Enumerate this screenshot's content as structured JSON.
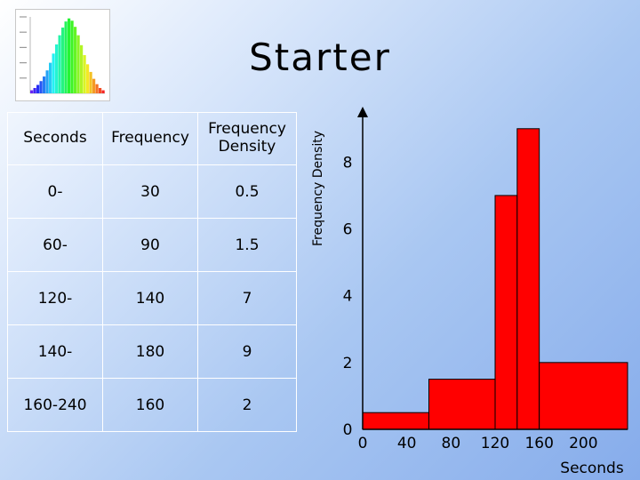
{
  "title": "Starter",
  "table": {
    "headers": [
      "Seconds",
      "Frequency",
      "Frequency Density"
    ],
    "rows": [
      [
        "0-",
        "30",
        "0.5"
      ],
      [
        "60-",
        "90",
        "1.5"
      ],
      [
        "120-",
        "140",
        "7"
      ],
      [
        "140-",
        "180",
        "9"
      ],
      [
        "160-240",
        "160",
        "2"
      ]
    ]
  },
  "chart_data": {
    "type": "bar",
    "subtype": "histogram",
    "xlabel": "Seconds",
    "ylabel": "Frequency Density",
    "x_ticks": [
      "0",
      "40",
      "80",
      "120",
      "160",
      "200"
    ],
    "y_ticks": [
      "0",
      "2",
      "4",
      "6",
      "8"
    ],
    "bins": [
      {
        "start": 0,
        "end": 60,
        "density": 0.5
      },
      {
        "start": 60,
        "end": 120,
        "density": 1.5
      },
      {
        "start": 120,
        "end": 140,
        "density": 7
      },
      {
        "start": 140,
        "end": 160,
        "density": 9
      },
      {
        "start": 160,
        "end": 240,
        "density": 2
      }
    ],
    "xlim": [
      0,
      240
    ],
    "ylim": [
      0,
      9.5
    ],
    "bar_color": "#ff0000",
    "grid": false
  },
  "thumbnail": {
    "description_icon": "histogram-thumbnail-icon",
    "bar_heights": [
      0.04,
      0.07,
      0.11,
      0.16,
      0.22,
      0.3,
      0.4,
      0.52,
      0.64,
      0.76,
      0.86,
      0.94,
      0.98,
      0.95,
      0.87,
      0.76,
      0.63,
      0.5,
      0.38,
      0.28,
      0.19,
      0.12,
      0.07,
      0.04
    ]
  }
}
